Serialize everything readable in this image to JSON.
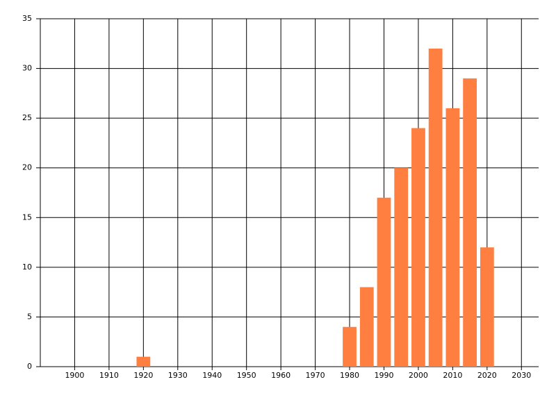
{
  "chart_data": {
    "type": "bar",
    "x": [
      1920,
      1980,
      1985,
      1990,
      1995,
      2000,
      2005,
      2010,
      2015,
      2020
    ],
    "values": [
      1,
      4,
      8,
      17,
      20,
      24,
      32,
      26,
      29,
      12
    ],
    "color": "#ff7f40",
    "xlim": [
      1890,
      2035
    ],
    "xticks": [
      1900,
      1910,
      1920,
      1930,
      1940,
      1950,
      1960,
      1970,
      1980,
      1990,
      2000,
      2010,
      2020,
      2030
    ],
    "ylim": [
      0,
      35
    ],
    "yticks": [
      0,
      5,
      10,
      15,
      20,
      25,
      30,
      35
    ],
    "grid": true
  }
}
